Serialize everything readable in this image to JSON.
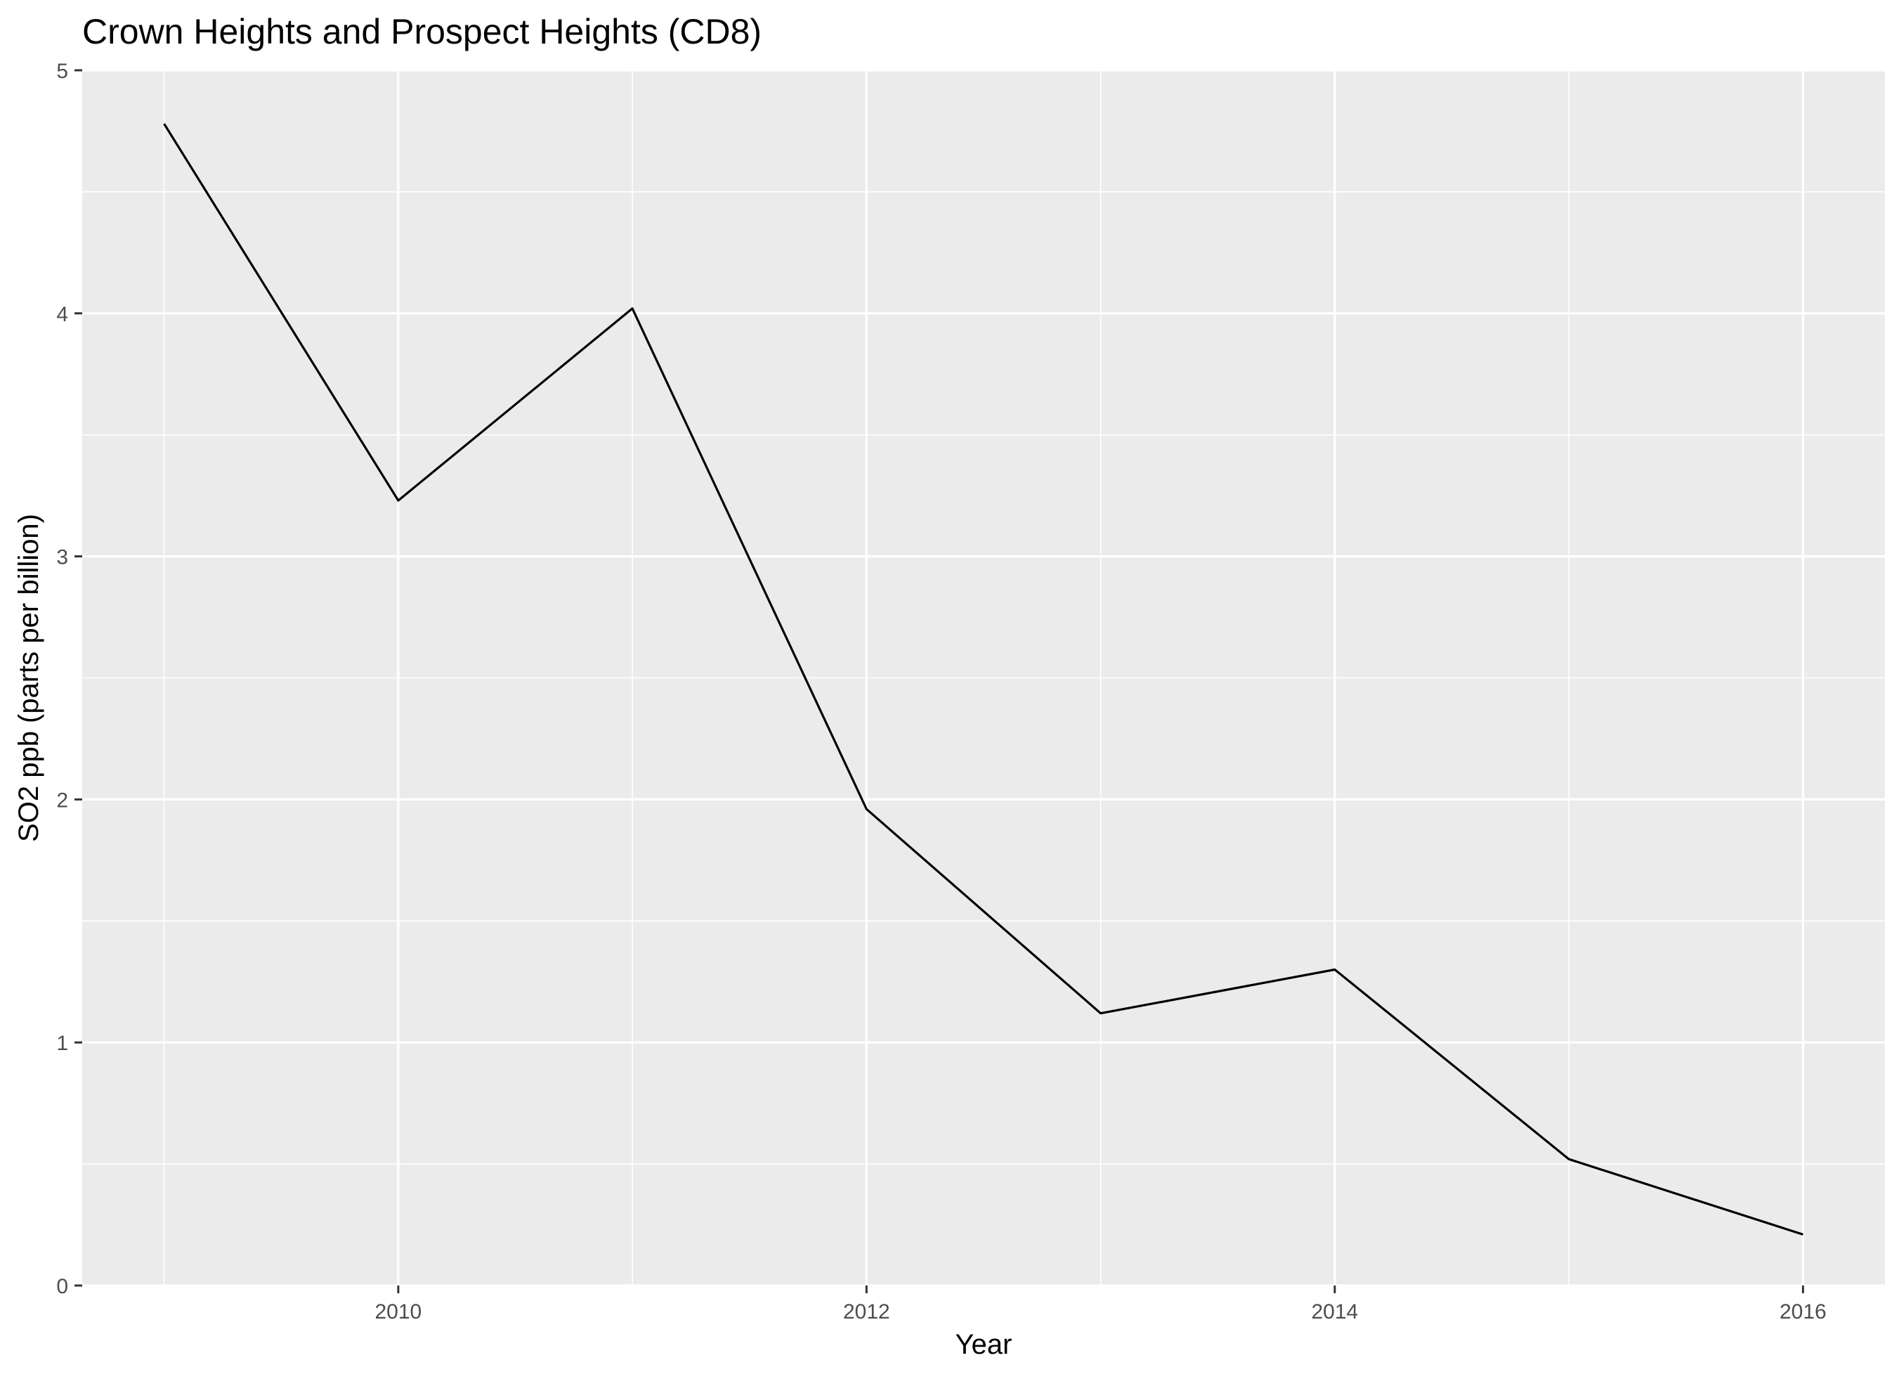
{
  "chart_data": {
    "type": "line",
    "title": "Crown Heights and Prospect Heights (CD8)",
    "xlabel": "Year",
    "ylabel": "SO2 ppb (parts per billion)",
    "x": [
      2009,
      2010,
      2011,
      2012,
      2013,
      2014,
      2015,
      2016
    ],
    "series": [
      {
        "values": [
          4.78,
          3.23,
          4.02,
          1.96,
          1.12,
          1.3,
          0.52,
          0.21
        ]
      }
    ],
    "xlim": [
      2008.65,
      2016.35
    ],
    "ylim": [
      0,
      5
    ],
    "x_ticks": [
      2010,
      2012,
      2014,
      2016
    ],
    "x_tick_labels": [
      "2010",
      "2012",
      "2014",
      "2016"
    ],
    "y_ticks": [
      0,
      1,
      2,
      3,
      4,
      5
    ],
    "y_tick_labels": [
      "0",
      "1",
      "2",
      "3",
      "4",
      "5"
    ],
    "grid": true,
    "panel_background": "#ebebeb",
    "grid_color": "#ffffff",
    "line_color": "#000000",
    "tick_label_color": "#4d4d4d"
  }
}
